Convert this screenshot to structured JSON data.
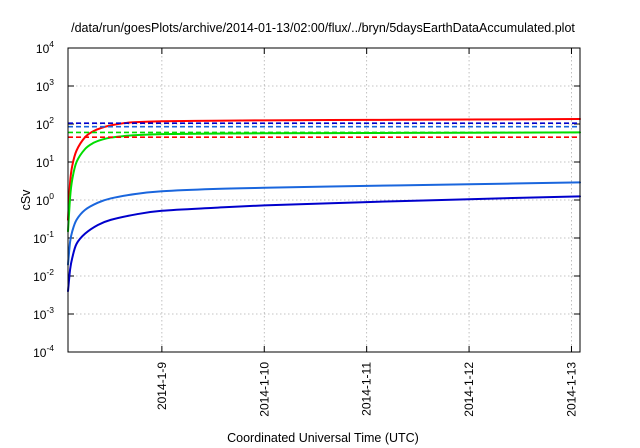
{
  "chart_data": {
    "type": "line",
    "title": "/data/run/goesPlots/archive/2014-01-13/02:00/flux/../bryn/5daysEarthDataAccumulated.plot",
    "xlabel": "Coordinated Universal Time (UTC)",
    "ylabel": "cSv",
    "yscale": "log",
    "ylim": [
      0.0001,
      10000
    ],
    "xlim": [
      "2014-01-08T02:00",
      "2014-01-13T02:00"
    ],
    "grid": true,
    "x_ticks": [
      {
        "label": "2014-1-9",
        "value": "2014-01-09T00:00"
      },
      {
        "label": "2014-1-10",
        "value": "2014-01-10T00:00"
      },
      {
        "label": "2014-1-11",
        "value": "2014-01-11T00:00"
      },
      {
        "label": "2014-1-12",
        "value": "2014-01-12T00:00"
      },
      {
        "label": "2014-1-13",
        "value": "2014-01-13T00:00"
      }
    ],
    "y_ticks": [
      {
        "base": "10",
        "exp": "-4",
        "value": 0.0001
      },
      {
        "base": "10",
        "exp": "-3",
        "value": 0.001
      },
      {
        "base": "10",
        "exp": "-2",
        "value": 0.01
      },
      {
        "base": "10",
        "exp": "-1",
        "value": 0.1
      },
      {
        "base": "10",
        "exp": "0",
        "value": 1
      },
      {
        "base": "10",
        "exp": "1",
        "value": 10
      },
      {
        "base": "10",
        "exp": "2",
        "value": 100
      },
      {
        "base": "10",
        "exp": "3",
        "value": 1000
      },
      {
        "base": "10",
        "exp": "4",
        "value": 10000
      }
    ],
    "series": [
      {
        "color": "#ff0000",
        "style": "solid",
        "x": [
          "2014-01-08T02:00",
          "2014-01-08T02:30",
          "2014-01-08T03:00",
          "2014-01-08T04:00",
          "2014-01-08T06:00",
          "2014-01-08T08:00",
          "2014-01-08T10:00",
          "2014-01-08T12:00",
          "2014-01-08T15:00",
          "2014-01-08T18:00",
          "2014-01-09T00:00",
          "2014-01-09T12:00",
          "2014-01-10T00:00",
          "2014-01-11T00:00",
          "2014-01-12T00:00",
          "2014-01-13T02:00"
        ],
        "values": [
          0.3,
          3,
          8,
          20,
          45,
          65,
          80,
          92,
          105,
          112,
          118,
          122,
          125,
          128,
          131,
          135
        ]
      },
      {
        "color": "#00dd00",
        "style": "solid",
        "x": [
          "2014-01-08T02:00",
          "2014-01-08T02:30",
          "2014-01-08T03:00",
          "2014-01-08T04:00",
          "2014-01-08T06:00",
          "2014-01-08T08:00",
          "2014-01-08T10:00",
          "2014-01-08T12:00",
          "2014-01-08T15:00",
          "2014-01-08T18:00",
          "2014-01-09T00:00",
          "2014-01-09T12:00",
          "2014-01-10T00:00",
          "2014-01-11T00:00",
          "2014-01-12T00:00",
          "2014-01-13T02:00"
        ],
        "values": [
          0.15,
          1.2,
          3.5,
          10,
          22,
          32,
          39,
          44,
          48,
          51,
          54,
          56,
          57,
          58,
          59,
          60
        ]
      },
      {
        "color": "#1a66dd",
        "style": "solid",
        "x": [
          "2014-01-08T02:00",
          "2014-01-08T02:30",
          "2014-01-08T03:00",
          "2014-01-08T04:00",
          "2014-01-08T06:00",
          "2014-01-08T09:00",
          "2014-01-08T12:00",
          "2014-01-08T18:00",
          "2014-01-09T00:00",
          "2014-01-09T12:00",
          "2014-01-10T00:00",
          "2014-01-11T00:00",
          "2014-01-12T00:00",
          "2014-01-13T02:00"
        ],
        "values": [
          0.02,
          0.08,
          0.15,
          0.3,
          0.55,
          0.85,
          1.1,
          1.45,
          1.7,
          1.95,
          2.1,
          2.35,
          2.6,
          2.9
        ]
      },
      {
        "color": "#0000cc",
        "style": "solid",
        "x": [
          "2014-01-08T02:00",
          "2014-01-08T02:30",
          "2014-01-08T03:00",
          "2014-01-08T04:00",
          "2014-01-08T06:00",
          "2014-01-08T09:00",
          "2014-01-08T12:00",
          "2014-01-08T18:00",
          "2014-01-09T00:00",
          "2014-01-09T12:00",
          "2014-01-10T00:00",
          "2014-01-11T00:00",
          "2014-01-12T00:00",
          "2014-01-13T02:00"
        ],
        "values": [
          0.004,
          0.015,
          0.03,
          0.07,
          0.13,
          0.22,
          0.3,
          0.42,
          0.52,
          0.62,
          0.72,
          0.88,
          1.05,
          1.25
        ]
      },
      {
        "color": "#ff0000",
        "style": "dashed",
        "x": [
          "2014-01-08T02:00",
          "2014-01-13T02:00"
        ],
        "values": [
          45,
          45
        ]
      },
      {
        "color": "#00dd00",
        "style": "dashed",
        "x": [
          "2014-01-08T02:00",
          "2014-01-13T02:00"
        ],
        "values": [
          60,
          60
        ]
      },
      {
        "color": "#1a66dd",
        "style": "dashed",
        "x": [
          "2014-01-08T02:00",
          "2014-01-13T02:00"
        ],
        "values": [
          85,
          85
        ]
      },
      {
        "color": "#0000cc",
        "style": "dashed",
        "x": [
          "2014-01-08T02:00",
          "2014-01-13T02:00"
        ],
        "values": [
          105,
          105
        ]
      }
    ]
  }
}
